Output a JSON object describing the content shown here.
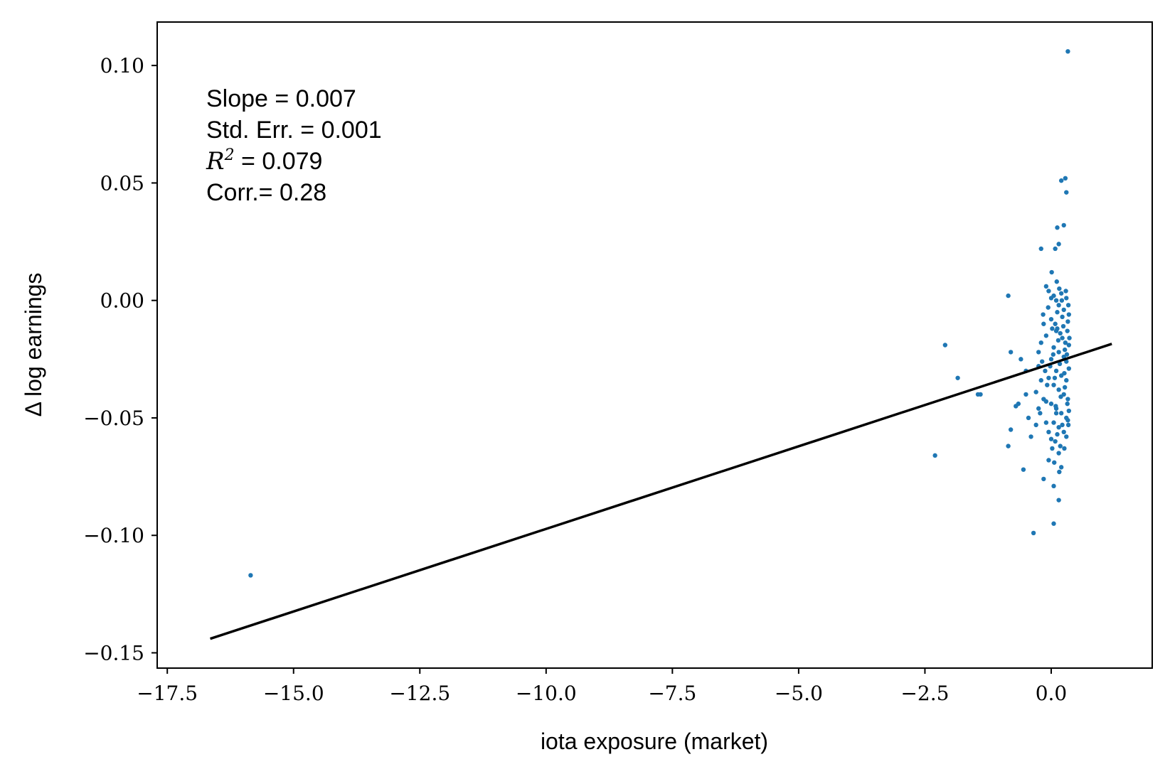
{
  "chart_data": {
    "type": "scatter",
    "title": "",
    "xlabel": "iota exposure (market)",
    "ylabel": "Δ log earnings",
    "xlim": [
      -17.7,
      2.0
    ],
    "ylim": [
      -0.1565,
      0.1185
    ],
    "x_ticks": [
      -17.5,
      -15.0,
      -12.5,
      -10.0,
      -7.5,
      -5.0,
      -2.5,
      0.0
    ],
    "x_tick_labels": [
      "−17.5",
      "−15.0",
      "−12.5",
      "−10.0",
      "−7.5",
      "−5.0",
      "−2.5",
      "0.0"
    ],
    "y_ticks": [
      0.1,
      0.05,
      0.0,
      -0.05,
      -0.1,
      -0.15
    ],
    "y_tick_labels": [
      "0.10",
      "0.05",
      "0.00",
      "−0.05",
      "−0.10",
      "−0.15"
    ],
    "grid": false,
    "annotations": {
      "slope": "Slope = 0.007",
      "std_err": "Std. Err. = 0.001",
      "r2_symbol": "R",
      "r2_exp": "2",
      "r2_value": " = 0.079",
      "corr": "Corr.= 0.28"
    },
    "fit_line": {
      "x": [
        -16.65,
        1.2
      ],
      "y": [
        -0.144,
        -0.0185
      ],
      "color": "#000000"
    },
    "series": [
      {
        "color": "#1f77b4",
        "points": [
          [
            -15.85,
            -0.117
          ],
          [
            -2.3,
            -0.066
          ],
          [
            -2.1,
            -0.019
          ],
          [
            -1.85,
            -0.033
          ],
          [
            -1.45,
            -0.04
          ],
          [
            -1.4,
            -0.04
          ],
          [
            -0.85,
            0.002
          ],
          [
            -0.85,
            -0.062
          ],
          [
            -0.8,
            -0.022
          ],
          [
            -0.8,
            -0.055
          ],
          [
            -0.7,
            -0.045
          ],
          [
            -0.65,
            -0.044
          ],
          [
            -0.6,
            -0.025
          ],
          [
            -0.55,
            -0.072
          ],
          [
            -0.5,
            -0.03
          ],
          [
            -0.5,
            -0.04
          ],
          [
            -0.45,
            -0.05
          ],
          [
            -0.4,
            -0.058
          ],
          [
            -0.35,
            -0.099
          ],
          [
            -0.3,
            -0.039
          ],
          [
            -0.3,
            -0.053
          ],
          [
            -0.25,
            -0.028
          ],
          [
            -0.25,
            -0.046
          ],
          [
            -0.2,
            0.022
          ],
          [
            -0.2,
            -0.034
          ],
          [
            -0.15,
            -0.076
          ],
          [
            -0.1,
            -0.015
          ],
          [
            -0.1,
            -0.043
          ],
          [
            -0.05,
            -0.068
          ],
          [
            -0.05,
            -0.033
          ],
          [
            0.0,
            0.001
          ],
          [
            0.0,
            -0.025
          ],
          [
            0.0,
            -0.059
          ],
          [
            0.05,
            -0.079
          ],
          [
            0.05,
            -0.095
          ],
          [
            0.08,
            0.022
          ],
          [
            0.1,
            -0.013
          ],
          [
            0.1,
            -0.048
          ],
          [
            0.12,
            0.031
          ],
          [
            0.15,
            0.024
          ],
          [
            0.15,
            -0.085
          ],
          [
            0.15,
            -0.065
          ],
          [
            0.2,
            0.051
          ],
          [
            0.2,
            -0.071
          ],
          [
            0.25,
            0.032
          ],
          [
            0.28,
            0.052
          ],
          [
            0.3,
            0.046
          ],
          [
            0.33,
            0.106
          ],
          [
            -0.1,
            0.006
          ],
          [
            -0.05,
            0.004
          ],
          [
            0.05,
            0.002
          ],
          [
            0.1,
            0.0
          ],
          [
            0.15,
            -0.002
          ],
          [
            0.2,
            0.003
          ],
          [
            0.25,
            -0.004
          ],
          [
            0.3,
            0.001
          ],
          [
            0.35,
            -0.006
          ],
          [
            0.0,
            -0.008
          ],
          [
            0.08,
            -0.01
          ],
          [
            0.12,
            -0.012
          ],
          [
            0.18,
            -0.014
          ],
          [
            0.22,
            -0.016
          ],
          [
            0.28,
            -0.018
          ],
          [
            0.33,
            -0.009
          ],
          [
            0.05,
            -0.02
          ],
          [
            0.15,
            -0.022
          ],
          [
            0.25,
            -0.024
          ],
          [
            0.3,
            -0.026
          ],
          [
            0.35,
            -0.019
          ],
          [
            -0.02,
            -0.028
          ],
          [
            0.1,
            -0.03
          ],
          [
            0.2,
            -0.032
          ],
          [
            0.3,
            -0.034
          ],
          [
            0.35,
            -0.029
          ],
          [
            0.05,
            -0.036
          ],
          [
            0.15,
            -0.038
          ],
          [
            0.25,
            -0.04
          ],
          [
            0.33,
            -0.042
          ],
          [
            0.0,
            -0.044
          ],
          [
            0.1,
            -0.046
          ],
          [
            0.2,
            -0.048
          ],
          [
            0.3,
            -0.05
          ],
          [
            0.35,
            -0.047
          ],
          [
            0.05,
            -0.052
          ],
          [
            0.15,
            -0.054
          ],
          [
            0.25,
            -0.056
          ],
          [
            0.33,
            -0.051
          ],
          [
            0.08,
            -0.06
          ],
          [
            0.18,
            -0.062
          ],
          [
            0.3,
            -0.058
          ],
          [
            -0.15,
            -0.01
          ],
          [
            -0.2,
            -0.018
          ],
          [
            -0.25,
            -0.022
          ],
          [
            -0.18,
            -0.026
          ],
          [
            -0.12,
            -0.03
          ],
          [
            -0.08,
            -0.036
          ],
          [
            -0.15,
            -0.042
          ],
          [
            -0.22,
            -0.048
          ],
          [
            -0.1,
            -0.052
          ],
          [
            -0.05,
            -0.056
          ],
          [
            0.02,
            -0.012
          ],
          [
            0.12,
            -0.005
          ],
          [
            0.22,
            -0.007
          ],
          [
            0.32,
            -0.013
          ],
          [
            0.27,
            -0.021
          ],
          [
            0.17,
            -0.027
          ],
          [
            0.07,
            -0.033
          ],
          [
            0.27,
            -0.037
          ],
          [
            0.32,
            -0.044
          ],
          [
            0.22,
            -0.053
          ],
          [
            0.12,
            -0.057
          ],
          [
            0.02,
            -0.063
          ],
          [
            0.29,
            0.004
          ],
          [
            0.34,
            -0.002
          ],
          [
            0.24,
            -0.011
          ],
          [
            0.14,
            -0.017
          ],
          [
            0.04,
            -0.023
          ],
          [
            0.19,
            -0.041
          ],
          [
            0.09,
            -0.045
          ],
          [
            0.34,
            -0.053
          ],
          [
            0.26,
            -0.031
          ],
          [
            0.31,
            -0.023
          ],
          [
            0.36,
            -0.016
          ],
          [
            0.21,
            0.0
          ],
          [
            0.16,
            0.005
          ],
          [
            0.11,
            0.008
          ],
          [
            0.01,
            0.012
          ],
          [
            -0.06,
            -0.003
          ],
          [
            -0.16,
            -0.006
          ],
          [
            0.06,
            -0.069
          ],
          [
            0.16,
            -0.073
          ],
          [
            0.26,
            -0.063
          ]
        ]
      }
    ]
  }
}
